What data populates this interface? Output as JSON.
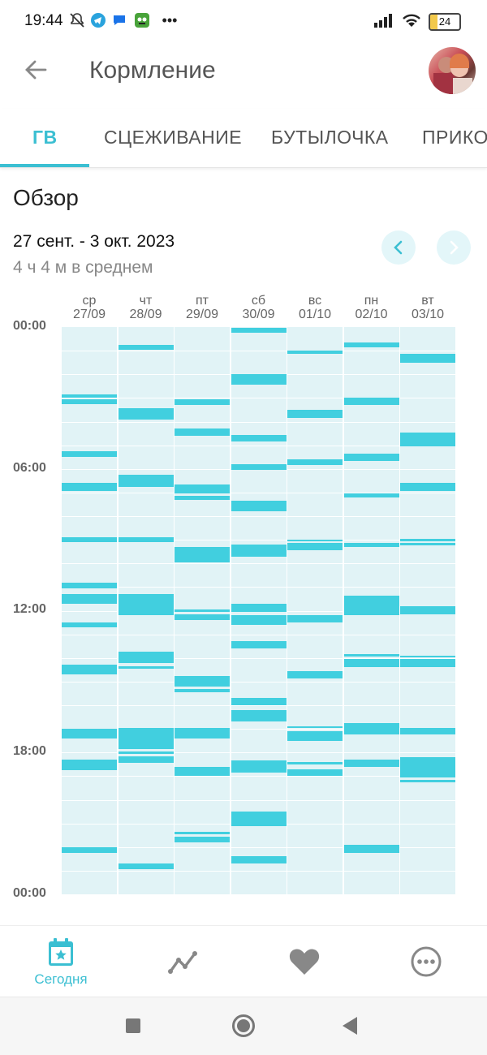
{
  "status_bar": {
    "time": "19:44",
    "battery": "24",
    "icons": [
      "mute-bell-icon",
      "telegram-icon",
      "messages-icon",
      "game-icon",
      "more-dots-icon",
      "signal-icon",
      "wifi-icon",
      "battery-icon"
    ]
  },
  "appbar": {
    "title": "Кормление",
    "back_icon": "arrow-left-icon",
    "avatar": "profile-avatar"
  },
  "tabs": [
    {
      "label": "ГВ",
      "active": true
    },
    {
      "label": "СЦЕЖИВАНИЕ",
      "active": false
    },
    {
      "label": "БУТЫЛОЧКА",
      "active": false
    },
    {
      "label": "ПРИКО",
      "active": false
    }
  ],
  "overview": {
    "title": "Обзор",
    "date_range": "27 сент. - 3 окт. 2023",
    "average": "4 ч 4 м в среднем",
    "prev_icon": "chevron-left-icon",
    "next_icon": "chevron-right-icon"
  },
  "colors": {
    "accent": "#3bbfd2",
    "feed": "#41cfdf",
    "column_bg": "#e1f3f6"
  },
  "chart_data": {
    "type": "timeline",
    "y_axis_ticks": [
      "00:00",
      "06:00",
      "12:00",
      "18:00",
      "00:00"
    ],
    "y_range_hours": [
      0,
      24
    ],
    "days": [
      {
        "dow": "ср",
        "date": "27/09",
        "feeds": [
          [
            2.85,
            3.0
          ],
          [
            3.05,
            3.25
          ],
          [
            5.25,
            5.5
          ],
          [
            6.6,
            6.95
          ],
          [
            8.9,
            9.1
          ],
          [
            10.8,
            11.05
          ],
          [
            11.3,
            11.7
          ],
          [
            12.5,
            12.7
          ],
          [
            14.3,
            14.7
          ],
          [
            17.0,
            17.4
          ],
          [
            18.3,
            18.75
          ],
          [
            22.0,
            22.25
          ]
        ]
      },
      {
        "dow": "чт",
        "date": "28/09",
        "feeds": [
          [
            0.75,
            0.95
          ],
          [
            3.45,
            3.9
          ],
          [
            6.25,
            6.75
          ],
          [
            8.9,
            9.1
          ],
          [
            11.3,
            12.2
          ],
          [
            13.75,
            14.2
          ],
          [
            14.35,
            14.45
          ],
          [
            16.95,
            17.85
          ],
          [
            17.95,
            18.05
          ],
          [
            18.15,
            18.45
          ],
          [
            22.7,
            22.95
          ]
        ]
      },
      {
        "dow": "пт",
        "date": "29/09",
        "feeds": [
          [
            3.05,
            3.3
          ],
          [
            4.3,
            4.6
          ],
          [
            6.65,
            7.05
          ],
          [
            7.15,
            7.3
          ],
          [
            9.3,
            9.95
          ],
          [
            11.95,
            12.05
          ],
          [
            12.15,
            12.4
          ],
          [
            14.75,
            15.2
          ],
          [
            15.3,
            15.45
          ],
          [
            16.95,
            17.4
          ],
          [
            18.6,
            19.0
          ],
          [
            21.35,
            21.45
          ],
          [
            21.55,
            21.8
          ]
        ]
      },
      {
        "dow": "сб",
        "date": "30/09",
        "feeds": [
          [
            0.05,
            0.25
          ],
          [
            2.0,
            2.45
          ],
          [
            4.55,
            4.85
          ],
          [
            5.8,
            6.05
          ],
          [
            7.35,
            7.8
          ],
          [
            9.2,
            9.7
          ],
          [
            11.7,
            12.05
          ],
          [
            12.2,
            12.6
          ],
          [
            13.3,
            13.6
          ],
          [
            15.7,
            16.0
          ],
          [
            16.2,
            16.7
          ],
          [
            18.35,
            18.85
          ],
          [
            20.5,
            21.1
          ],
          [
            22.4,
            22.7
          ]
        ]
      },
      {
        "dow": "вс",
        "date": "01/10",
        "feeds": [
          [
            1.0,
            1.15
          ],
          [
            3.5,
            3.85
          ],
          [
            5.6,
            5.85
          ],
          [
            9.0,
            9.05
          ],
          [
            9.15,
            9.45
          ],
          [
            12.2,
            12.5
          ],
          [
            14.55,
            14.85
          ],
          [
            16.9,
            16.95
          ],
          [
            17.1,
            17.5
          ],
          [
            18.4,
            18.5
          ],
          [
            18.7,
            19.0
          ]
        ]
      },
      {
        "dow": "пн",
        "date": "02/10",
        "feeds": [
          [
            0.65,
            0.85
          ],
          [
            3.0,
            3.3
          ],
          [
            5.35,
            5.65
          ],
          [
            7.05,
            7.2
          ],
          [
            9.15,
            9.3
          ],
          [
            11.35,
            12.2
          ],
          [
            13.85,
            13.95
          ],
          [
            14.05,
            14.4
          ],
          [
            16.75,
            17.25
          ],
          [
            18.3,
            18.6
          ],
          [
            21.9,
            22.25
          ]
        ]
      },
      {
        "dow": "вт",
        "date": "03/10",
        "feeds": [
          [
            1.15,
            1.5
          ],
          [
            4.45,
            5.05
          ],
          [
            6.6,
            6.95
          ],
          [
            8.95,
            9.05
          ],
          [
            9.15,
            9.25
          ],
          [
            11.8,
            12.15
          ],
          [
            13.9,
            13.95
          ],
          [
            14.05,
            14.4
          ],
          [
            16.95,
            17.25
          ],
          [
            18.2,
            19.05
          ],
          [
            19.15,
            19.25
          ]
        ]
      }
    ]
  },
  "bottom_nav": [
    {
      "icon": "calendar-icon",
      "label": "Сегодня",
      "active": true
    },
    {
      "icon": "trend-chart-icon",
      "label": "",
      "active": false
    },
    {
      "icon": "heart-icon",
      "label": "",
      "active": false
    },
    {
      "icon": "more-icon",
      "label": "",
      "active": false
    }
  ],
  "system_nav": {
    "icons": [
      "recent-apps-icon",
      "home-icon",
      "back-icon"
    ]
  }
}
